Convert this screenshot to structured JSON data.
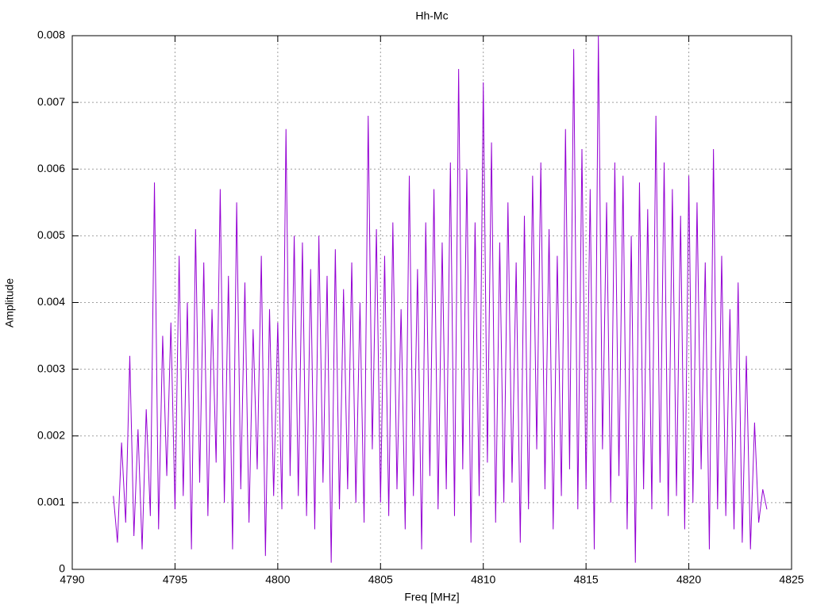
{
  "chart_data": {
    "type": "line",
    "title": "Hh-Mc",
    "x_label": "Freq [MHz]",
    "y_label": "Amplitude",
    "color": "#9400d3",
    "grid": true,
    "xlim": [
      4790,
      4825
    ],
    "xticks": [
      4790,
      4795,
      4800,
      4805,
      4810,
      4815,
      4820,
      4825
    ],
    "ylim": [
      0,
      0.008
    ],
    "yticks": [
      0,
      0.001,
      0.002,
      0.003,
      0.004,
      0.005,
      0.006,
      0.007,
      0.008
    ],
    "x": [
      4792,
      4792.2,
      4792.4,
      4792.6,
      4792.8,
      4793,
      4793.2,
      4793.4,
      4793.6,
      4793.8,
      4794,
      4794.2,
      4794.4,
      4794.6,
      4794.8,
      4795,
      4795.2,
      4795.4,
      4795.6,
      4795.8,
      4796,
      4796.2,
      4796.4,
      4796.6,
      4796.8,
      4797,
      4797.2,
      4797.4,
      4797.6,
      4797.8,
      4798,
      4798.2,
      4798.4,
      4798.6,
      4798.8,
      4799,
      4799.2,
      4799.4,
      4799.6,
      4799.8,
      4800,
      4800.2,
      4800.4,
      4800.6,
      4800.8,
      4801,
      4801.2,
      4801.4,
      4801.6,
      4801.8,
      4802,
      4802.2,
      4802.4,
      4802.6,
      4802.8,
      4803,
      4803.2,
      4803.4,
      4803.6,
      4803.8,
      4804,
      4804.2,
      4804.4,
      4804.6,
      4804.8,
      4805,
      4805.2,
      4805.4,
      4805.6,
      4805.8,
      4806,
      4806.2,
      4806.4,
      4806.6,
      4806.8,
      4807,
      4807.2,
      4807.4,
      4807.6,
      4807.8,
      4808,
      4808.2,
      4808.4,
      4808.6,
      4808.8,
      4809,
      4809.2,
      4809.4,
      4809.6,
      4809.8,
      4810,
      4810.2,
      4810.4,
      4810.6,
      4810.8,
      4811,
      4811.2,
      4811.4,
      4811.6,
      4811.8,
      4812,
      4812.2,
      4812.4,
      4812.6,
      4812.8,
      4813,
      4813.2,
      4813.4,
      4813.6,
      4813.8,
      4814,
      4814.2,
      4814.4,
      4814.6,
      4814.8,
      4815,
      4815.2,
      4815.4,
      4815.6,
      4815.8,
      4816,
      4816.2,
      4816.4,
      4816.6,
      4816.8,
      4817,
      4817.2,
      4817.4,
      4817.6,
      4817.8,
      4818,
      4818.2,
      4818.4,
      4818.6,
      4818.8,
      4819,
      4819.2,
      4819.4,
      4819.6,
      4819.8,
      4820,
      4820.2,
      4820.4,
      4820.6,
      4820.8,
      4821,
      4821.2,
      4821.4,
      4821.6,
      4821.8,
      4822,
      4822.2,
      4822.4,
      4822.6,
      4822.8,
      4823,
      4823.2,
      4823.4,
      4823.6,
      4823.8
    ],
    "values": [
      0.0011,
      0.0004,
      0.0019,
      0.0007,
      0.0032,
      0.0005,
      0.0021,
      0.0003,
      0.0024,
      0.0008,
      0.0058,
      0.0006,
      0.0035,
      0.0014,
      0.0037,
      0.0009,
      0.0047,
      0.0011,
      0.004,
      0.0003,
      0.0051,
      0.0013,
      0.0046,
      0.0008,
      0.0039,
      0.0016,
      0.0057,
      0.001,
      0.0044,
      0.0003,
      0.0055,
      0.0012,
      0.0043,
      0.0007,
      0.0036,
      0.0015,
      0.0047,
      0.0002,
      0.0039,
      0.0011,
      0.0037,
      0.0009,
      0.0066,
      0.0014,
      0.005,
      0.0011,
      0.0049,
      0.0008,
      0.0045,
      0.0006,
      0.005,
      0.0013,
      0.0044,
      0.0001,
      0.0048,
      0.0009,
      0.0042,
      0.0012,
      0.0046,
      0.001,
      0.004,
      0.0007,
      0.0068,
      0.0018,
      0.0051,
      0.001,
      0.0047,
      0.0008,
      0.0052,
      0.0012,
      0.0039,
      0.0006,
      0.0059,
      0.0011,
      0.0045,
      0.0003,
      0.0052,
      0.0014,
      0.0057,
      0.0009,
      0.0049,
      0.0012,
      0.0061,
      0.0008,
      0.0075,
      0.0015,
      0.006,
      0.0004,
      0.0052,
      0.0011,
      0.0073,
      0.0016,
      0.0064,
      0.0007,
      0.0049,
      0.001,
      0.0055,
      0.0013,
      0.0046,
      0.0004,
      0.0053,
      0.0009,
      0.0059,
      0.0018,
      0.0061,
      0.0012,
      0.0051,
      0.0006,
      0.0047,
      0.0011,
      0.0066,
      0.0015,
      0.0078,
      0.0009,
      0.0063,
      0.0012,
      0.0057,
      0.0003,
      0.008,
      0.0018,
      0.0055,
      0.001,
      0.0061,
      0.0014,
      0.0059,
      0.0006,
      0.005,
      0.0001,
      0.0058,
      0.0012,
      0.0054,
      0.0009,
      0.0068,
      0.0013,
      0.0061,
      0.0008,
      0.0057,
      0.0011,
      0.0053,
      0.0006,
      0.0059,
      0.001,
      0.0055,
      0.0015,
      0.0046,
      0.0003,
      0.0063,
      0.0009,
      0.0047,
      0.0008,
      0.0039,
      0.0006,
      0.0043,
      0.0004,
      0.0032,
      0.0003,
      0.0022,
      0.0007,
      0.0012,
      0.0009
    ]
  }
}
